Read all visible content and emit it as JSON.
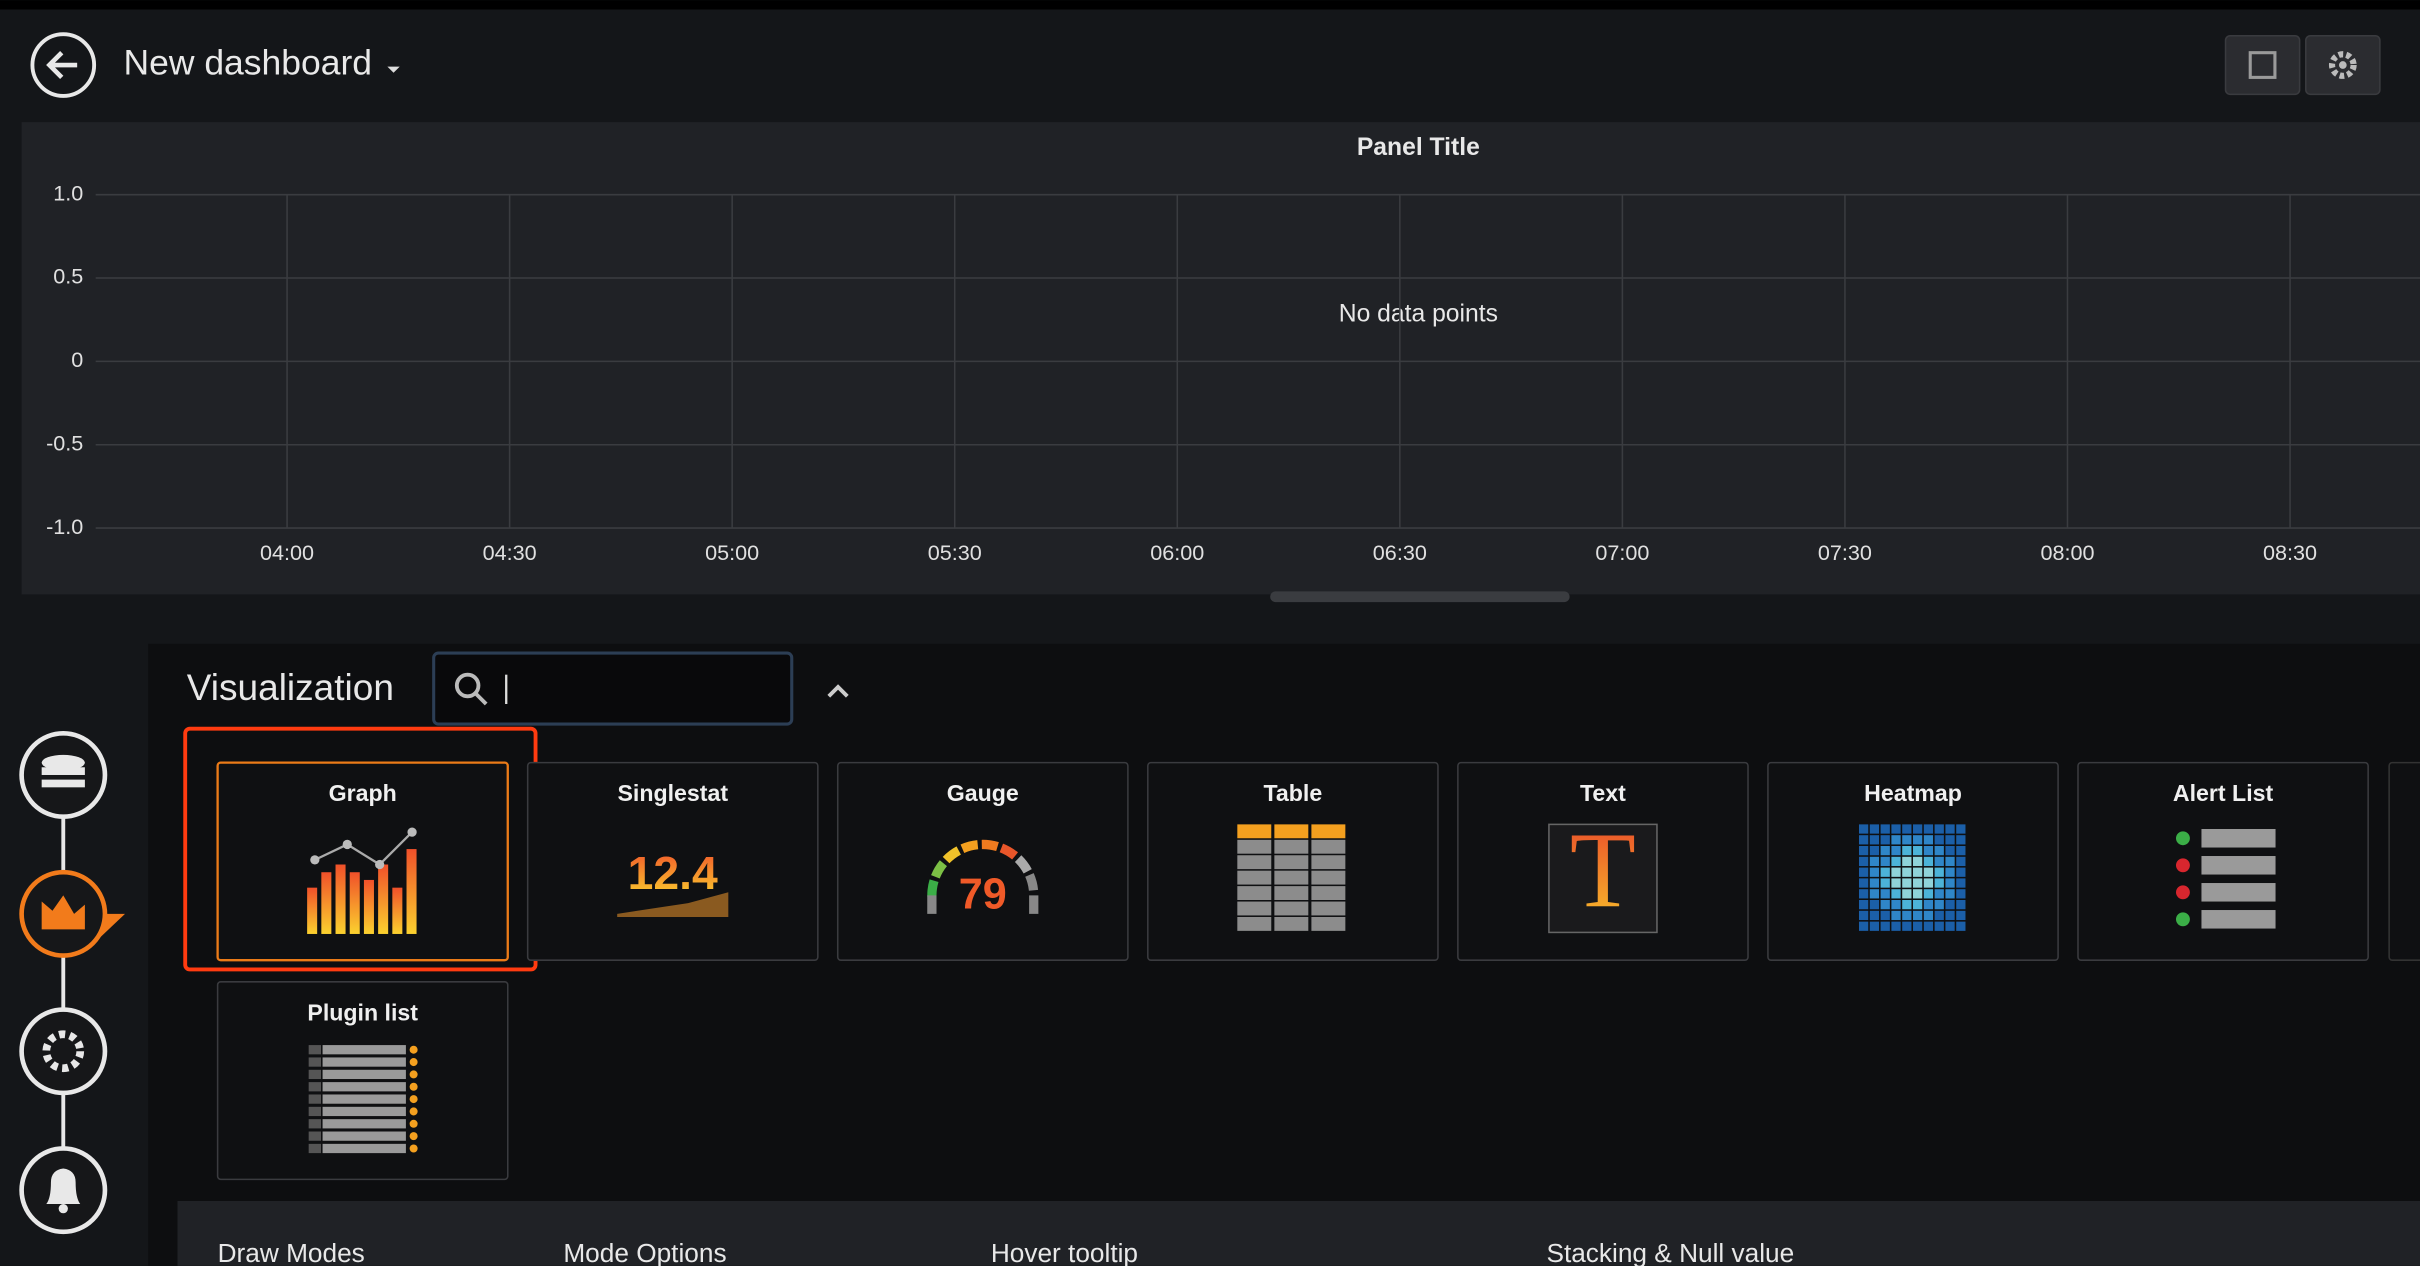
{
  "header": {
    "title": "New dashboard"
  },
  "panel": {
    "title": "Panel Title",
    "message": "No data points",
    "yticks": [
      {
        "value": 1,
        "label": "1.0"
      },
      0.5,
      0,
      -0.5,
      {
        "value": -1,
        "label": "-1.0"
      }
    ],
    "xticks": [
      "04:00",
      "04:30",
      "05:00",
      "05:30",
      "06:00",
      "06:30",
      "07:00",
      "07:30",
      "08:00",
      "08:30"
    ]
  },
  "visualization": {
    "label": "Visualization",
    "tiles": [
      {
        "name": "Graph"
      },
      {
        "name": "Singlestat",
        "icon_text": "12.4"
      },
      {
        "name": "Gauge",
        "icon_text": "79"
      },
      {
        "name": "Table"
      },
      {
        "name": "Text",
        "icon_text": "T"
      },
      {
        "name": "Heatmap"
      },
      {
        "name": "Alert List"
      },
      {
        "name": "Plugin list"
      }
    ]
  },
  "options": {
    "sections": [
      "Draw Modes",
      "Mode Options",
      "Hover tooltip",
      "Stacking & Null value"
    ]
  }
}
